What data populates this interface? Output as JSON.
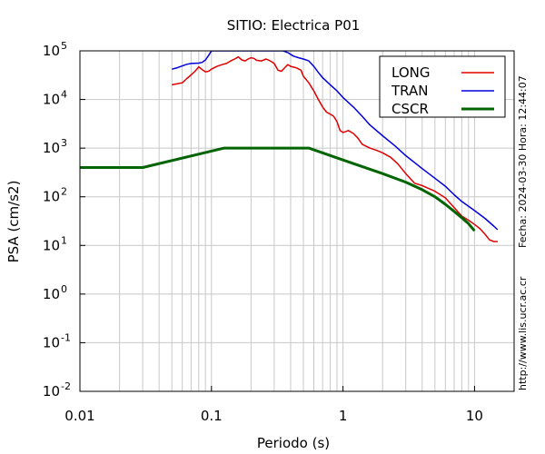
{
  "side_labels": {
    "date": "Fecha: 2024-03-30  Hora: 12:44:07",
    "url": "http://www.lis.ucr.ac.cr"
  },
  "chart_data": {
    "type": "line",
    "title": "SITIO: Electrica P01",
    "xlabel": "Periodo (s)",
    "ylabel": "PSA (cm/s2)",
    "xscale": "log",
    "yscale": "log",
    "xlim": [
      0.01,
      20
    ],
    "ylim": [
      0.01,
      100000
    ],
    "x_ticks": [
      {
        "value": 0.01,
        "label": "0.01"
      },
      {
        "value": 0.1,
        "label": "0.1"
      },
      {
        "value": 1,
        "label": "1"
      },
      {
        "value": 10,
        "label": "10"
      }
    ],
    "y_ticks": [
      {
        "value": 0.01,
        "base": "10",
        "exp": "-2"
      },
      {
        "value": 0.1,
        "base": "10",
        "exp": "-1"
      },
      {
        "value": 1,
        "base": "10",
        "exp": "0"
      },
      {
        "value": 10,
        "base": "10",
        "exp": "1"
      },
      {
        "value": 100,
        "base": "10",
        "exp": "2"
      },
      {
        "value": 1000,
        "base": "10",
        "exp": "3"
      },
      {
        "value": 10000,
        "base": "10",
        "exp": "4"
      },
      {
        "value": 100000,
        "base": "10",
        "exp": "5"
      }
    ],
    "grid": true,
    "legend_position": "top-right",
    "series": [
      {
        "name": "LONG",
        "color": "#dd0000",
        "line_width": 1.5,
        "points": [
          [
            0.05,
            20000
          ],
          [
            0.055,
            21000
          ],
          [
            0.06,
            22000
          ],
          [
            0.065,
            27000
          ],
          [
            0.07,
            32000
          ],
          [
            0.075,
            38000
          ],
          [
            0.08,
            47000
          ],
          [
            0.085,
            41000
          ],
          [
            0.09,
            37000
          ],
          [
            0.095,
            38000
          ],
          [
            0.1,
            42000
          ],
          [
            0.11,
            48000
          ],
          [
            0.12,
            52000
          ],
          [
            0.13,
            55000
          ],
          [
            0.14,
            62000
          ],
          [
            0.15,
            68000
          ],
          [
            0.16,
            75000
          ],
          [
            0.17,
            65000
          ],
          [
            0.18,
            62000
          ],
          [
            0.19,
            68000
          ],
          [
            0.2,
            72000
          ],
          [
            0.21,
            70000
          ],
          [
            0.22,
            64000
          ],
          [
            0.24,
            62000
          ],
          [
            0.26,
            68000
          ],
          [
            0.28,
            62000
          ],
          [
            0.3,
            55000
          ],
          [
            0.32,
            40000
          ],
          [
            0.34,
            38000
          ],
          [
            0.36,
            45000
          ],
          [
            0.38,
            52000
          ],
          [
            0.4,
            48000
          ],
          [
            0.44,
            45000
          ],
          [
            0.48,
            40000
          ],
          [
            0.5,
            30000
          ],
          [
            0.55,
            22000
          ],
          [
            0.6,
            15000
          ],
          [
            0.65,
            10000
          ],
          [
            0.7,
            7000
          ],
          [
            0.75,
            5500
          ],
          [
            0.8,
            5000
          ],
          [
            0.85,
            4500
          ],
          [
            0.9,
            3500
          ],
          [
            0.95,
            2300
          ],
          [
            1.0,
            2100
          ],
          [
            1.1,
            2300
          ],
          [
            1.2,
            2000
          ],
          [
            1.3,
            1600
          ],
          [
            1.4,
            1200
          ],
          [
            1.6,
            1000
          ],
          [
            1.8,
            900
          ],
          [
            2.0,
            800
          ],
          [
            2.3,
            650
          ],
          [
            2.6,
            480
          ],
          [
            3.0,
            300
          ],
          [
            3.5,
            190
          ],
          [
            4.0,
            170
          ],
          [
            5.0,
            130
          ],
          [
            6.0,
            95
          ],
          [
            7.0,
            60
          ],
          [
            8.0,
            40
          ],
          [
            9.0,
            33
          ],
          [
            10.0,
            27
          ],
          [
            11.0,
            22
          ],
          [
            12.0,
            17
          ],
          [
            13.0,
            13
          ],
          [
            14.0,
            12
          ],
          [
            15.0,
            12
          ]
        ]
      },
      {
        "name": "TRAN",
        "color": "#0000dd",
        "line_width": 1.5,
        "points": [
          [
            0.05,
            42000
          ],
          [
            0.055,
            45000
          ],
          [
            0.06,
            49000
          ],
          [
            0.065,
            53000
          ],
          [
            0.07,
            55000
          ],
          [
            0.08,
            56000
          ],
          [
            0.085,
            58000
          ],
          [
            0.09,
            65000
          ],
          [
            0.095,
            80000
          ],
          [
            0.1,
            100000
          ],
          [
            0.11,
            100000
          ],
          [
            0.12,
            100000
          ],
          [
            0.25,
            100000
          ],
          [
            0.28,
            100000
          ],
          [
            0.3,
            100000
          ],
          [
            0.33,
            100000
          ],
          [
            0.35,
            100000
          ],
          [
            0.38,
            92000
          ],
          [
            0.42,
            78000
          ],
          [
            0.46,
            72000
          ],
          [
            0.5,
            68000
          ],
          [
            0.55,
            62000
          ],
          [
            0.6,
            48000
          ],
          [
            0.65,
            36000
          ],
          [
            0.7,
            28000
          ],
          [
            0.8,
            20000
          ],
          [
            0.9,
            15000
          ],
          [
            1.0,
            11000
          ],
          [
            1.2,
            7000
          ],
          [
            1.4,
            4500
          ],
          [
            1.6,
            3000
          ],
          [
            2.0,
            1800
          ],
          [
            2.5,
            1100
          ],
          [
            3.0,
            700
          ],
          [
            4.0,
            380
          ],
          [
            5.0,
            240
          ],
          [
            6.0,
            165
          ],
          [
            7.0,
            110
          ],
          [
            8.0,
            80
          ],
          [
            10.0,
            52
          ],
          [
            12.0,
            36
          ],
          [
            14.0,
            25
          ],
          [
            15.0,
            21
          ]
        ]
      },
      {
        "name": "CSCR",
        "color": "#006400",
        "line_width": 3,
        "points": [
          [
            0.01,
            400
          ],
          [
            0.03,
            400
          ],
          [
            0.125,
            1000
          ],
          [
            0.55,
            1000
          ],
          [
            1.0,
            570
          ],
          [
            2.0,
            300
          ],
          [
            3.0,
            200
          ],
          [
            4.0,
            140
          ],
          [
            5.0,
            100
          ],
          [
            6.0,
            70
          ],
          [
            7.0,
            50
          ],
          [
            8.0,
            37
          ],
          [
            9.0,
            28
          ],
          [
            10.0,
            20
          ]
        ]
      }
    ]
  }
}
